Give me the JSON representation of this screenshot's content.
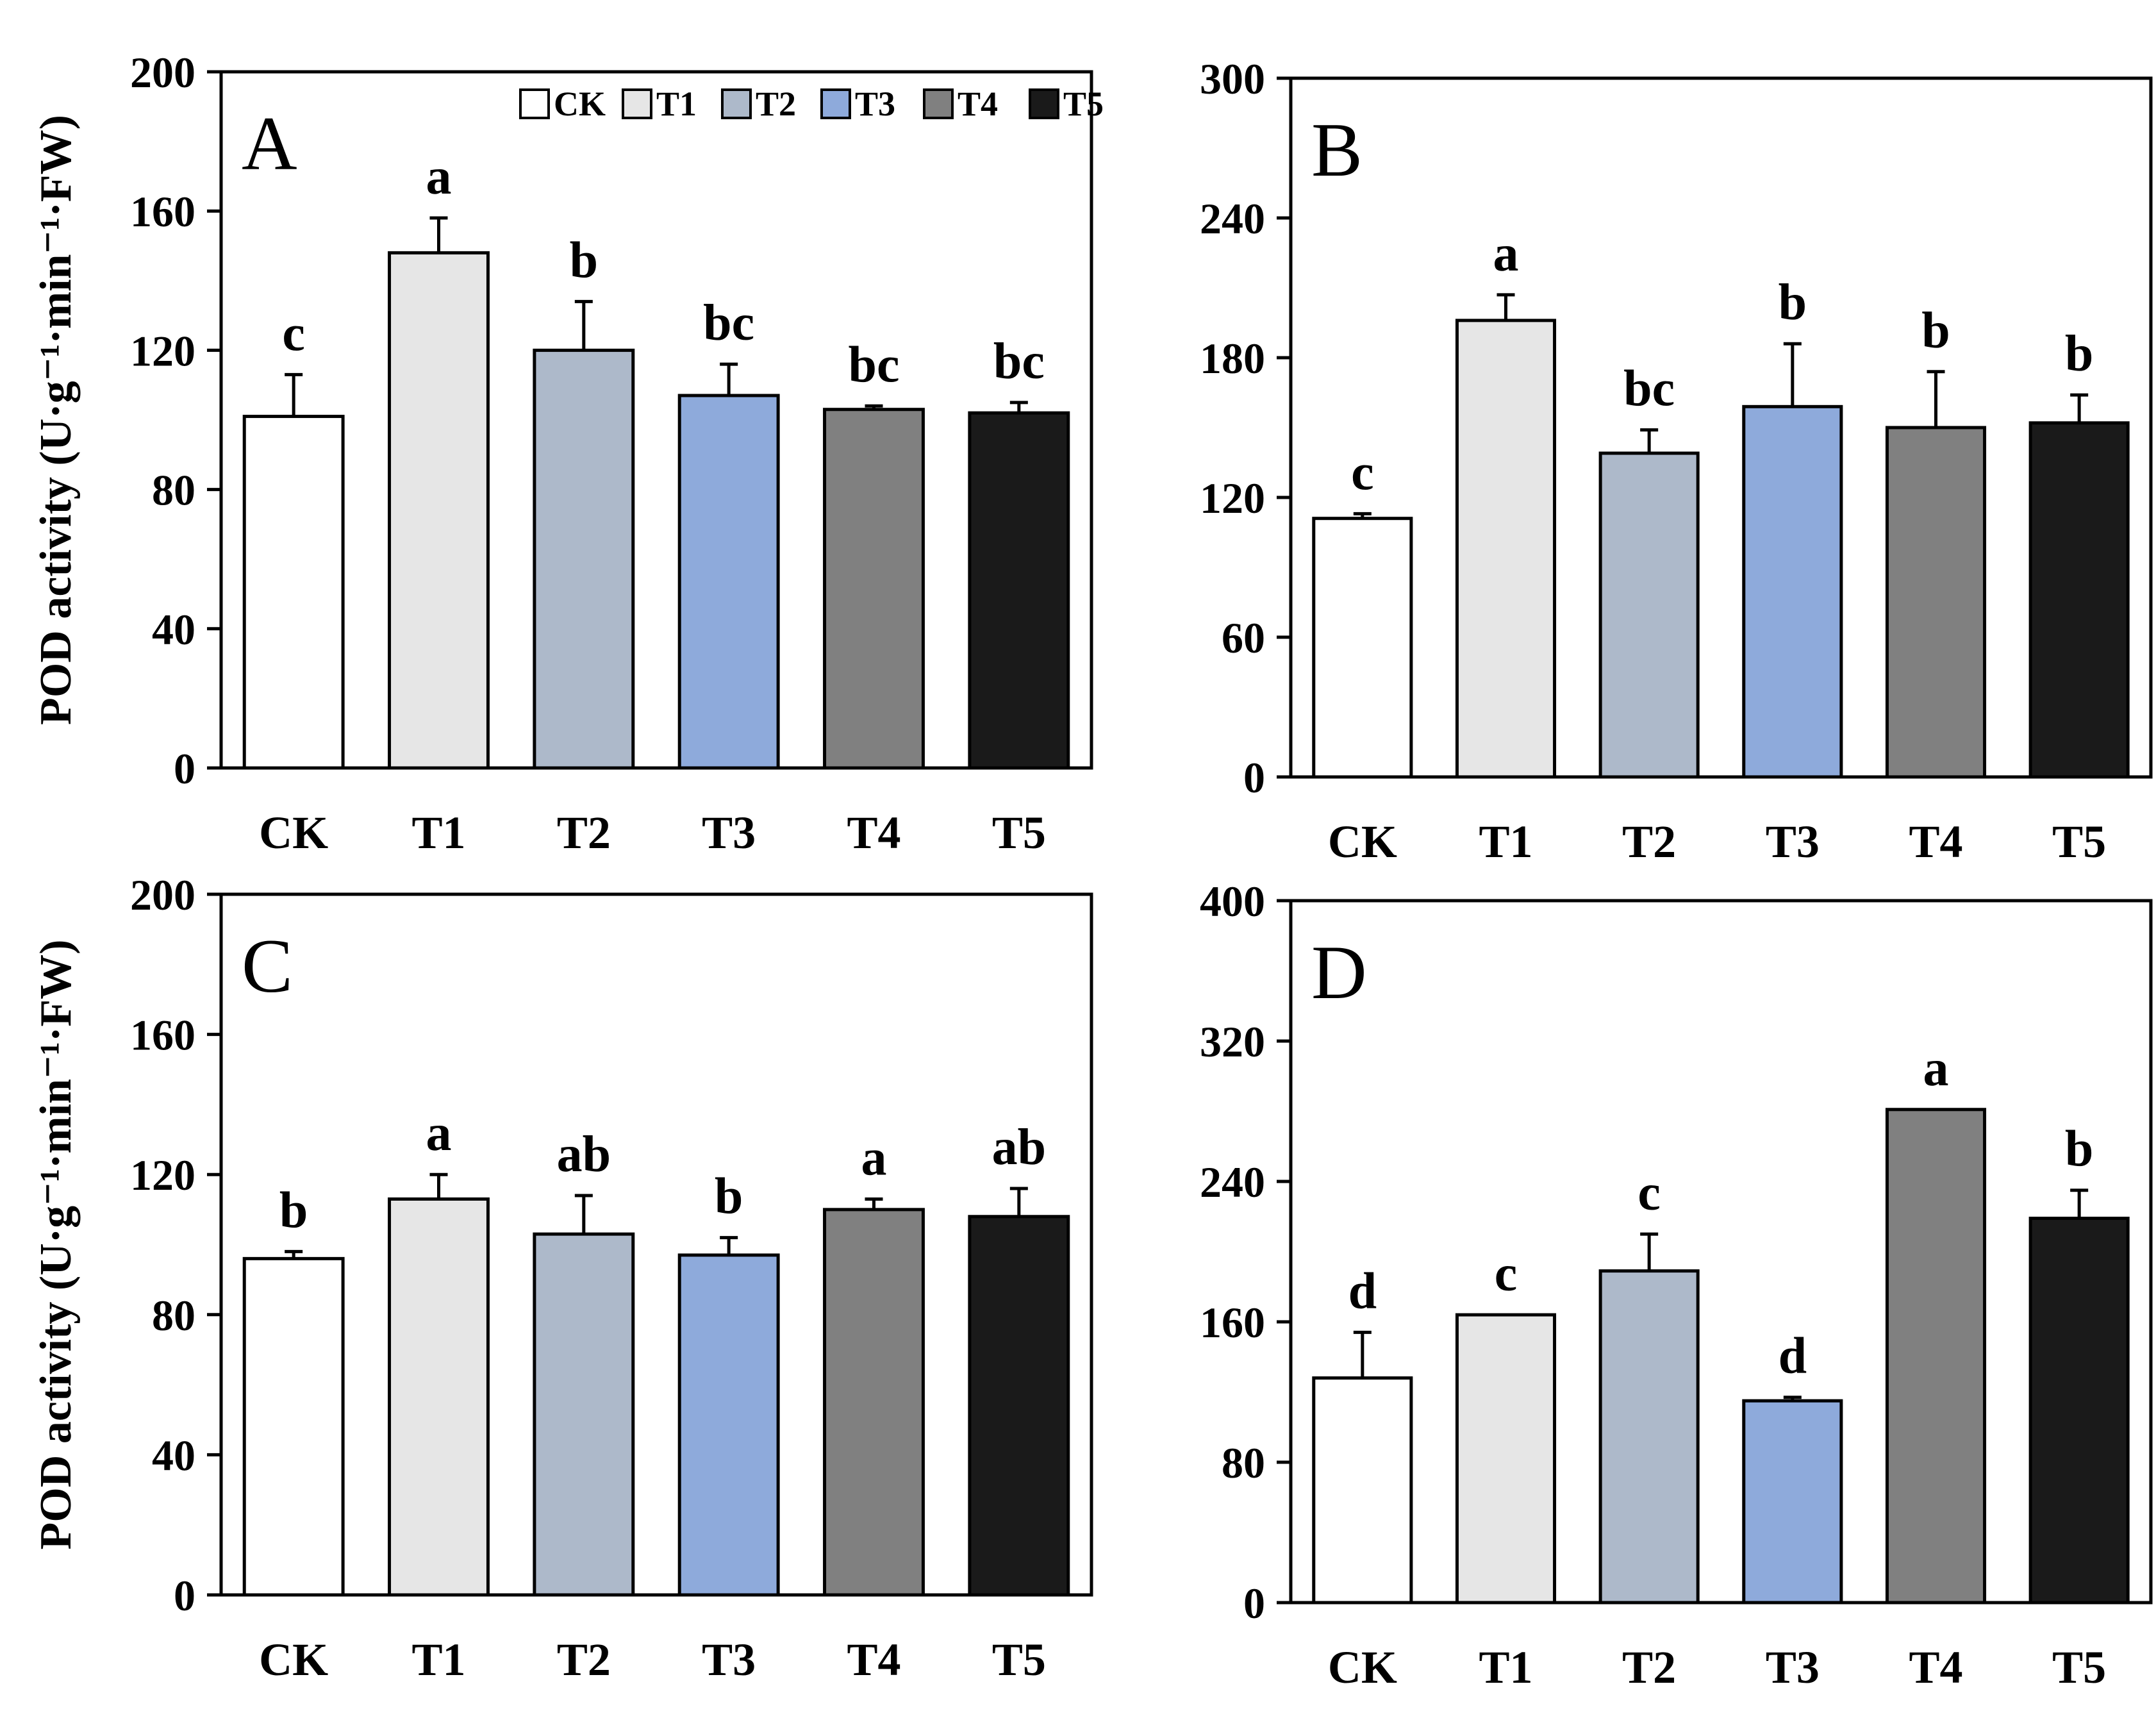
{
  "y_axis_title": "POD activity (U·g⁻¹·min⁻¹·FW)",
  "legend": [
    "CK",
    "T1",
    "T2",
    "T3",
    "T4",
    "T5"
  ],
  "colors": {
    "CK": "#ffffff",
    "T1": "#e6e6e6",
    "T2": "#adb9ca",
    "T3": "#8eaadb",
    "T4": "#808080",
    "T5": "#1a1a1a"
  },
  "chart_data": [
    {
      "type": "bar",
      "panel": "A",
      "categories": [
        "CK",
        "T1",
        "T2",
        "T3",
        "T4",
        "T5"
      ],
      "values": [
        101,
        148,
        120,
        107,
        103,
        102
      ],
      "errors": [
        12,
        10,
        14,
        9,
        1,
        3
      ],
      "significance": [
        "c",
        "a",
        "b",
        "bc",
        "bc",
        "bc"
      ],
      "ylim": [
        0,
        200
      ],
      "yticks": [
        0,
        40,
        80,
        120,
        160,
        200
      ],
      "ylabel": "POD activity (U·g⁻¹·min⁻¹·FW)"
    },
    {
      "type": "bar",
      "panel": "B",
      "categories": [
        "CK",
        "T1",
        "T2",
        "T3",
        "T4",
        "T5"
      ],
      "values": [
        111,
        196,
        139,
        159,
        150,
        152
      ],
      "errors": [
        2,
        11,
        10,
        27,
        24,
        12
      ],
      "significance": [
        "c",
        "a",
        "bc",
        "b",
        "b",
        "b"
      ],
      "ylim": [
        0,
        300
      ],
      "yticks": [
        0,
        60,
        120,
        180,
        240,
        300
      ],
      "ylabel": ""
    },
    {
      "type": "bar",
      "panel": "C",
      "categories": [
        "CK",
        "T1",
        "T2",
        "T3",
        "T4",
        "T5"
      ],
      "values": [
        96,
        113,
        103,
        97,
        110,
        108
      ],
      "errors": [
        2,
        7,
        11,
        5,
        3,
        8
      ],
      "significance": [
        "b",
        "a",
        "ab",
        "b",
        "a",
        "ab"
      ],
      "ylim": [
        0,
        200
      ],
      "yticks": [
        0,
        40,
        80,
        120,
        160,
        200
      ],
      "ylabel": "POD activity (U·g⁻¹·min⁻¹·FW)"
    },
    {
      "type": "bar",
      "panel": "D",
      "categories": [
        "CK",
        "T1",
        "T2",
        "T3",
        "T4",
        "T5"
      ],
      "values": [
        128,
        164,
        189,
        115,
        281,
        219
      ],
      "errors": [
        26,
        0,
        21,
        2,
        0,
        16
      ],
      "significance": [
        "d",
        "c",
        "c",
        "d",
        "a",
        "b"
      ],
      "ylim": [
        0,
        400
      ],
      "yticks": [
        0,
        80,
        160,
        240,
        320,
        400
      ],
      "ylabel": ""
    }
  ]
}
